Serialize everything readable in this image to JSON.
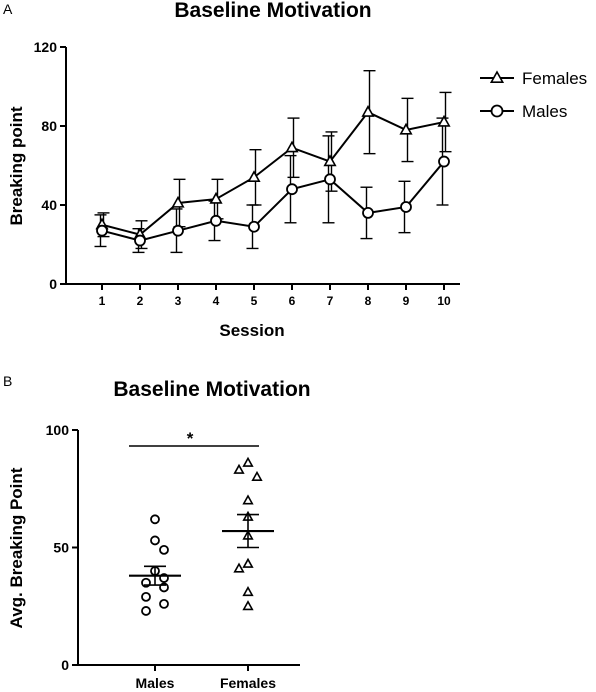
{
  "chart_data": [
    {
      "panel": "A",
      "type": "line",
      "title": "Baseline Motivation",
      "xlabel": "Session",
      "ylabel": "Breaking point",
      "categories": [
        "1",
        "2",
        "3",
        "4",
        "5",
        "6",
        "7",
        "8",
        "9",
        "10"
      ],
      "ylim": [
        0,
        120
      ],
      "yticks": [
        "0",
        "40",
        "80",
        "120"
      ],
      "legend_position": "top-right",
      "series": [
        {
          "name": "Females",
          "marker": "triangle",
          "values": [
            30,
            25,
            41,
            43,
            54,
            69,
            62,
            87,
            78,
            82
          ],
          "errors": [
            6,
            7,
            12,
            10,
            14,
            15,
            15,
            21,
            16,
            15
          ]
        },
        {
          "name": "Males",
          "marker": "circle",
          "values": [
            27,
            22,
            27,
            32,
            29,
            48,
            53,
            36,
            39,
            62
          ],
          "errors": [
            8,
            6,
            11,
            10,
            11,
            17,
            22,
            13,
            13,
            22
          ]
        }
      ]
    },
    {
      "panel": "B",
      "type": "scatter",
      "title": "Baseline Motivation",
      "ylabel": "Avg. Breaking Point",
      "categories": [
        "Males",
        "Females"
      ],
      "ylim": [
        0,
        100
      ],
      "yticks": [
        "0",
        "50",
        "100"
      ],
      "significance": "*",
      "groups": [
        {
          "name": "Males",
          "marker": "circle",
          "points": [
            62,
            53,
            49,
            40,
            37,
            35,
            33,
            29,
            26,
            23
          ],
          "mean": 38,
          "sem": 4
        },
        {
          "name": "Females",
          "marker": "triangle",
          "points": [
            86,
            83,
            80,
            70,
            63,
            55,
            43,
            41,
            31,
            25
          ],
          "mean": 57,
          "sem": 7
        }
      ]
    }
  ]
}
